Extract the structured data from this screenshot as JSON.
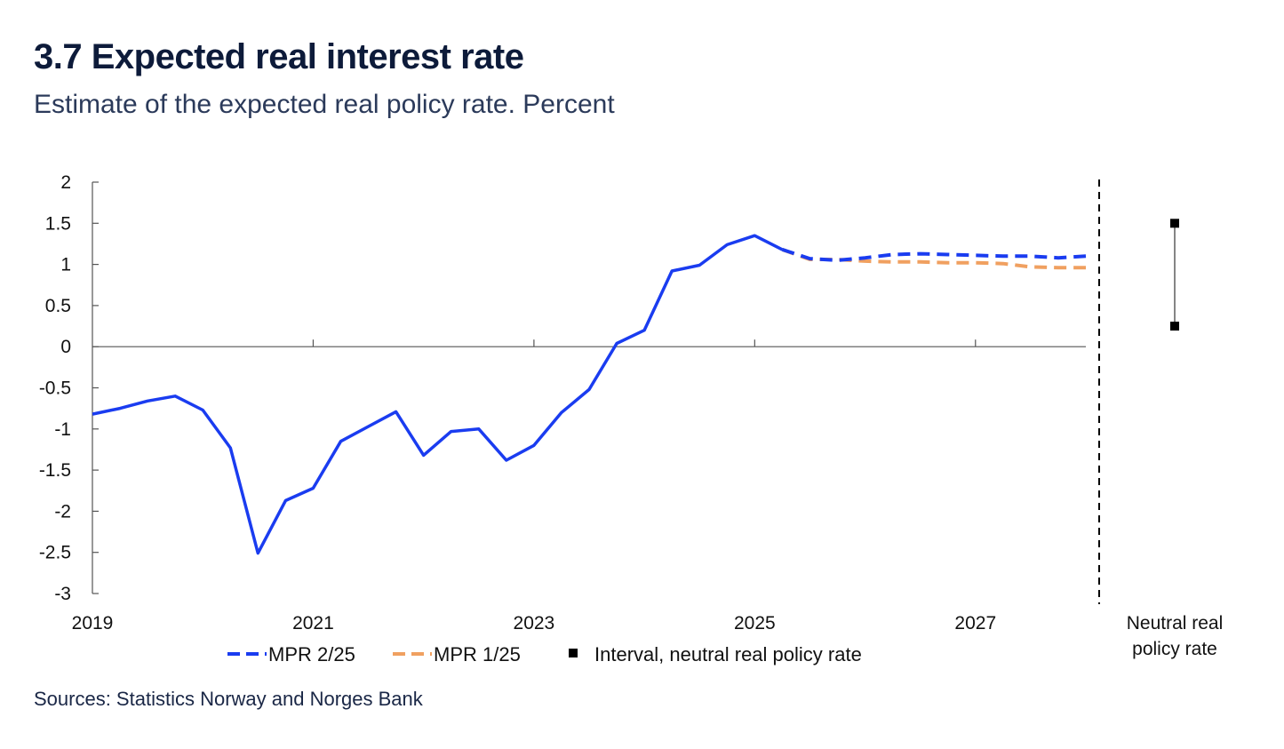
{
  "title": "3.7 Expected real interest rate",
  "subtitle": "Estimate of the expected real policy rate. Percent",
  "source": "Sources: Statistics Norway and  Norges Bank",
  "colors": {
    "mpr_2_25": "#1a3cf0",
    "mpr_1_25": "#f0a060",
    "interval": "#000000",
    "axis": "#555555"
  },
  "chart_data": {
    "type": "line",
    "title": "3.7 Expected real interest rate",
    "ylabel": "Percent",
    "ylim": [
      -3,
      2
    ],
    "yticks": [
      2,
      1.5,
      1,
      0.5,
      0,
      -0.5,
      -1,
      -1.5,
      -2,
      -2.5,
      -3
    ],
    "ytick_labels": [
      "2",
      "1.5",
      "1",
      "0.5",
      "0",
      "-0.5",
      "-1",
      "-1.5",
      "-2",
      "-2.5",
      "-3"
    ],
    "xlim": [
      2019.0,
      2028.0
    ],
    "xticks": [
      2019,
      2021,
      2023,
      2025,
      2027
    ],
    "xtick_labels": [
      "2019",
      "2021",
      "2023",
      "2025",
      "2027"
    ],
    "series": [
      {
        "name": "MPR 2/25",
        "style": "solid-then-dashed",
        "forecast_from": 2025.25,
        "x": [
          2019.0,
          2019.25,
          2019.5,
          2019.75,
          2020.0,
          2020.25,
          2020.5,
          2020.75,
          2021.0,
          2021.25,
          2021.5,
          2021.75,
          2022.0,
          2022.25,
          2022.5,
          2022.75,
          2023.0,
          2023.25,
          2023.5,
          2023.75,
          2024.0,
          2024.25,
          2024.5,
          2024.75,
          2025.0,
          2025.25,
          2025.5,
          2025.75,
          2026.0,
          2026.25,
          2026.5,
          2026.75,
          2027.0,
          2027.25,
          2027.5,
          2027.75,
          2028.0
        ],
        "values": [
          -0.82,
          -0.75,
          -0.66,
          -0.6,
          -0.77,
          -1.23,
          -2.51,
          -1.87,
          -1.72,
          -1.15,
          -0.97,
          -0.79,
          -1.32,
          -1.03,
          -1.0,
          -1.38,
          -1.2,
          -0.8,
          -0.52,
          0.04,
          0.2,
          0.92,
          0.99,
          1.24,
          1.35,
          1.18,
          1.07,
          1.05,
          1.08,
          1.12,
          1.13,
          1.12,
          1.11,
          1.1,
          1.1,
          1.08,
          1.1
        ]
      },
      {
        "name": "MPR 1/25",
        "style": "dashed",
        "x": [
          2025.25,
          2025.5,
          2025.75,
          2026.0,
          2026.25,
          2026.5,
          2026.75,
          2027.0,
          2027.25,
          2027.5,
          2027.75,
          2028.0
        ],
        "values": [
          1.18,
          1.06,
          1.06,
          1.04,
          1.03,
          1.03,
          1.02,
          1.02,
          1.01,
          0.97,
          0.96,
          0.96
        ]
      }
    ],
    "interval": {
      "name": "Interval, neutral real policy rate",
      "low": 0.25,
      "high": 1.5,
      "label": "Neutral real policy rate"
    },
    "legend": [
      "MPR 2/25",
      "MPR 1/25",
      "Interval, neutral real policy rate"
    ],
    "legend_position": "bottom"
  },
  "labels": {
    "interval_line1": "Neutral real",
    "interval_line2": "policy rate"
  }
}
